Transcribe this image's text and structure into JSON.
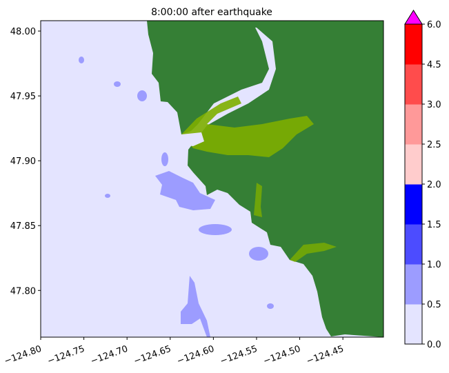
{
  "title": "8:00:00 after earthquake",
  "map": {
    "x_ticks": [
      "−124.80",
      "−124.75",
      "−124.70",
      "−124.65",
      "−124.60",
      "−124.55",
      "−124.50",
      "−124.45"
    ],
    "x_tick_values": [
      -124.8,
      -124.75,
      -124.7,
      -124.65,
      -124.6,
      -124.55,
      -124.5,
      -124.45
    ],
    "y_ticks": [
      "48.00",
      "47.95",
      "47.90",
      "47.85",
      "47.80"
    ],
    "y_tick_values": [
      48.0,
      47.95,
      47.9,
      47.85,
      47.8
    ],
    "xlim": [
      -124.8,
      -124.403
    ],
    "ylim": [
      47.764,
      48.008
    ],
    "colors": {
      "land": "#357f35",
      "inundation": "#7dae00",
      "water": "#e4e4ff",
      "water_shallow": "#9c9cff",
      "water_mid": "#4c4cff"
    }
  },
  "colorbar": {
    "ticks": [
      "0.0",
      "0.5",
      "1.0",
      "1.5",
      "2.0",
      "2.5",
      "3.0",
      "4.5",
      "6.0"
    ],
    "bins": [
      {
        "range": [
          0.0,
          0.5
        ],
        "color": "#e4e4ff"
      },
      {
        "range": [
          0.5,
          1.0
        ],
        "color": "#9c9cff"
      },
      {
        "range": [
          1.0,
          1.5
        ],
        "color": "#4c4cff"
      },
      {
        "range": [
          1.5,
          2.0
        ],
        "color": "#0000ff"
      },
      {
        "range": [
          2.0,
          2.5
        ],
        "color": "#ffcccc"
      },
      {
        "range": [
          2.5,
          3.0
        ],
        "color": "#ff9999"
      },
      {
        "range": [
          3.0,
          4.5
        ],
        "color": "#ff4c4c"
      },
      {
        "range": [
          4.5,
          6.0
        ],
        "color": "#ff0000"
      }
    ],
    "extend_color": "#ff00ff"
  }
}
